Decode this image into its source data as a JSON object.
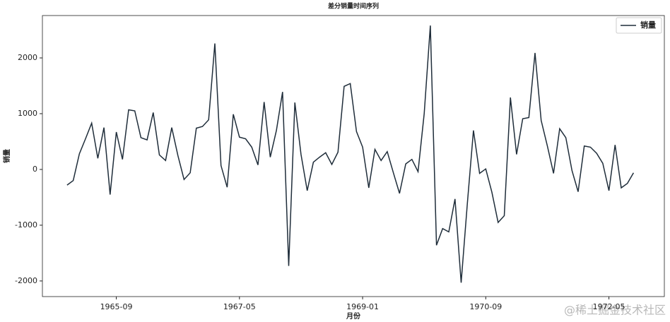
{
  "chart_data": {
    "type": "line",
    "title": "差分销量时间序列",
    "xlabel": "月份",
    "ylabel": "销量",
    "x": [
      "1965-01",
      "1965-02",
      "1965-03",
      "1965-04",
      "1965-05",
      "1965-06",
      "1965-07",
      "1965-08",
      "1965-09",
      "1965-10",
      "1965-11",
      "1965-12",
      "1966-01",
      "1966-02",
      "1966-03",
      "1966-04",
      "1966-05",
      "1966-06",
      "1966-07",
      "1966-08",
      "1966-09",
      "1966-10",
      "1966-11",
      "1966-12",
      "1967-01",
      "1967-02",
      "1967-03",
      "1967-04",
      "1967-05",
      "1967-06",
      "1967-07",
      "1967-08",
      "1967-09",
      "1967-10",
      "1967-11",
      "1967-12",
      "1968-01",
      "1968-02",
      "1968-03",
      "1968-04",
      "1968-05",
      "1968-06",
      "1968-07",
      "1968-08",
      "1968-09",
      "1968-10",
      "1968-11",
      "1968-12",
      "1969-01",
      "1969-02",
      "1969-03",
      "1969-04",
      "1969-05",
      "1969-06",
      "1969-07",
      "1969-08",
      "1969-09",
      "1969-10",
      "1969-11",
      "1969-12",
      "1970-01",
      "1970-02",
      "1970-03",
      "1970-04",
      "1970-05",
      "1970-06",
      "1970-07",
      "1970-08",
      "1970-09",
      "1970-10",
      "1970-11",
      "1970-12",
      "1971-01",
      "1971-02",
      "1971-03",
      "1971-04",
      "1971-05",
      "1971-06",
      "1971-07",
      "1971-08",
      "1971-09",
      "1971-10",
      "1971-11",
      "1971-12",
      "1972-01",
      "1972-02",
      "1972-03",
      "1972-04",
      "1972-05",
      "1972-06",
      "1972-07",
      "1972-08",
      "1972-09"
    ],
    "series": [
      {
        "name": "销量",
        "color": "#1f2d3a",
        "values": [
          -280,
          -200,
          280,
          550,
          830,
          200,
          750,
          -450,
          670,
          180,
          1070,
          1050,
          570,
          530,
          1020,
          260,
          160,
          750,
          250,
          -180,
          -60,
          740,
          770,
          890,
          2260,
          70,
          -320,
          990,
          580,
          550,
          400,
          80,
          1210,
          220,
          700,
          1390,
          -1730,
          1200,
          270,
          -380,
          130,
          220,
          300,
          90,
          310,
          1490,
          1540,
          680,
          400,
          -330,
          360,
          160,
          320,
          -60,
          -430,
          100,
          180,
          -40,
          1000,
          2580,
          -1360,
          -1060,
          -1120,
          -530,
          -2030,
          -620,
          700,
          -70,
          10,
          -410,
          -950,
          -830,
          1290,
          270,
          910,
          930,
          2090,
          880,
          420,
          -70,
          730,
          570,
          -20,
          -400,
          420,
          400,
          290,
          110,
          -380,
          440,
          -330,
          -250,
          -60
        ]
      }
    ],
    "xlim": [
      "1964-09",
      "1973-02"
    ],
    "xticks": [
      "1965-09",
      "1967-05",
      "1969-01",
      "1970-09",
      "1972-05"
    ],
    "ylim": [
      -2280,
      2760
    ],
    "yticks": [
      -2000,
      -1000,
      0,
      1000,
      2000
    ],
    "grid": false,
    "legend": "upper right",
    "watermark": "@稀土掘金技术社区"
  }
}
